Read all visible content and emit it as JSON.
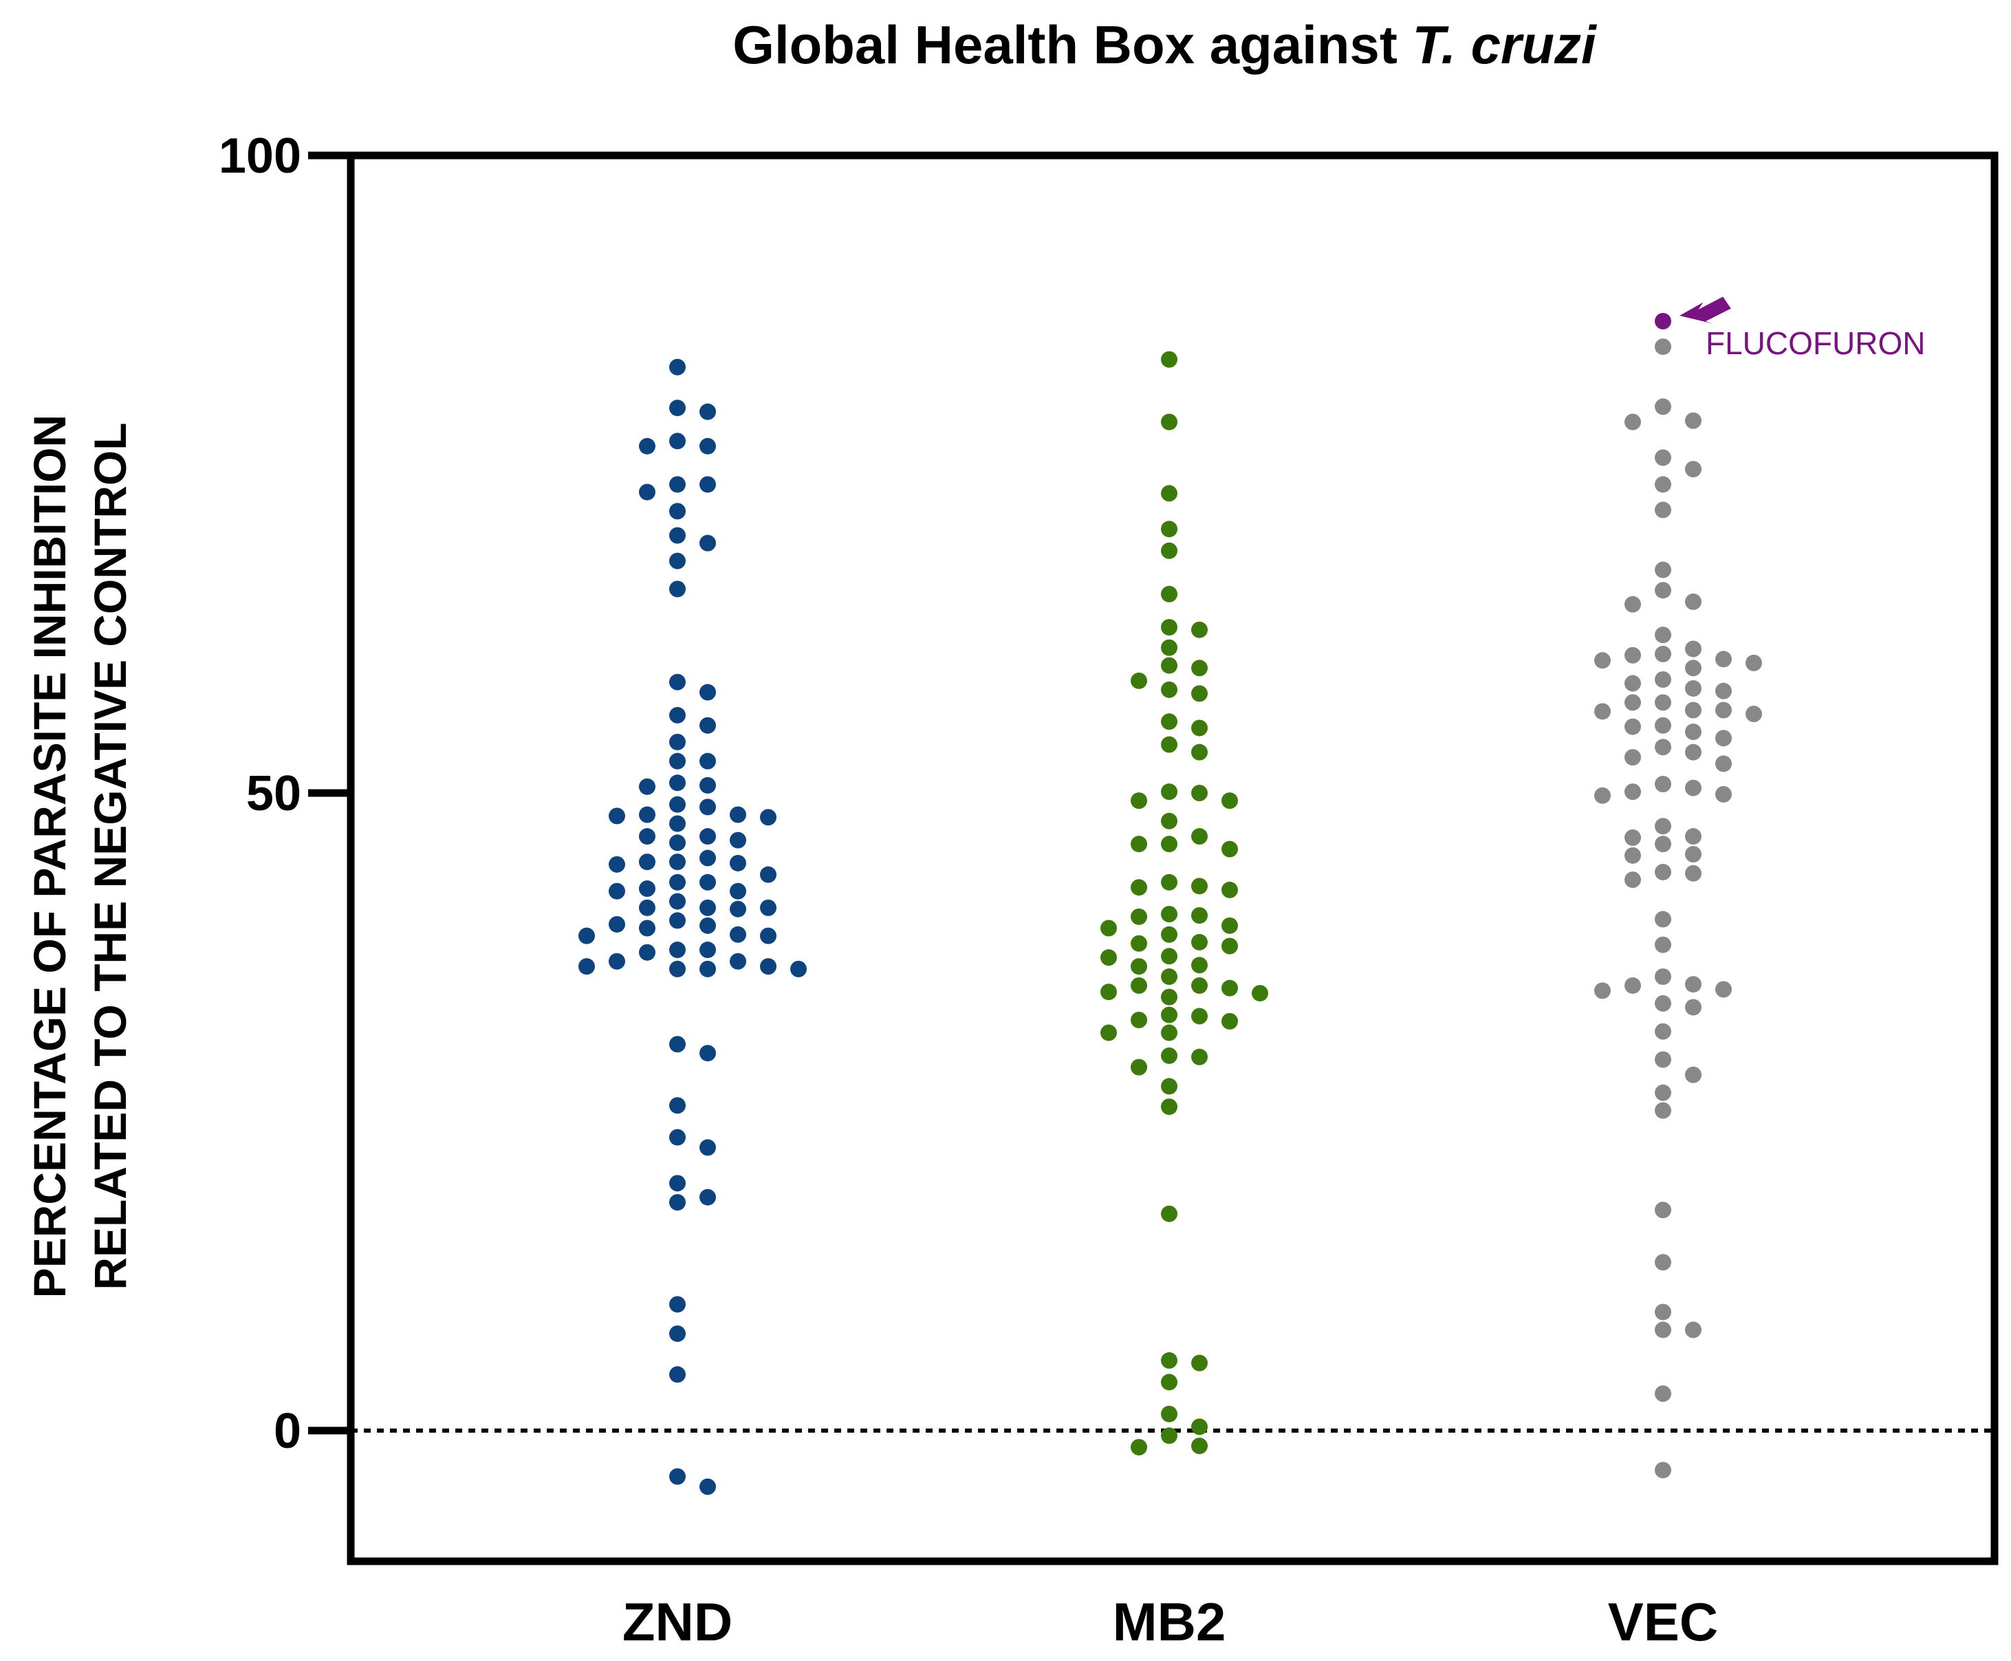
{
  "title": {
    "main": "Global Health Box against ",
    "italic": "T. cruzi"
  },
  "ylabel_lines": [
    "PERCENTAGE OF PARASITE INHIBITION",
    "RELATED TO THE NEGATIVE CONTROL"
  ],
  "colors": {
    "ZND": "#0d4480",
    "MB2": "#3d7a0c",
    "VEC": "#888888",
    "highlight": "#7a1382",
    "axis": "#000000"
  },
  "annotation": {
    "label": "FLUCOFURON",
    "category": "VEC",
    "value": 87.0,
    "icon": "arrow-icon"
  },
  "chart_data": {
    "type": "scatter",
    "title": "Global Health Box against T. cruzi",
    "xlabel": "",
    "ylabel": "PERCENTAGE OF PARASITE INHIBITION RELATED TO THE NEGATIVE CONTROL",
    "ylim": [
      -10,
      100
    ],
    "yticks": [
      0,
      50,
      100
    ],
    "reference_line": 0,
    "categories": [
      "ZND",
      "MB2",
      "VEC"
    ],
    "series": [
      {
        "name": "ZND",
        "values": [
          83.4,
          80.2,
          79.9,
          77.2,
          77.2,
          77.6,
          74.2,
          74.2,
          73.6,
          72.1,
          70.2,
          69.6,
          68.2,
          66.0,
          58.7,
          57.9,
          55.3,
          56.1,
          54.0,
          52.5,
          52.5,
          50.5,
          50.6,
          50.8,
          49.1,
          48.9,
          48.3,
          48.2,
          48.1,
          48.3,
          47.6,
          46.1,
          46.6,
          46.6,
          46.3,
          44.5,
          44.6,
          44.6,
          44.9,
          44.4,
          43.6,
          43.0,
          43.0,
          42.3,
          42.5,
          42.3,
          41.5,
          41.0,
          40.9,
          41.0,
          41.0,
          40.0,
          39.4,
          39.7,
          39.6,
          38.9,
          38.8,
          38.8,
          37.7,
          37.5,
          37.7,
          36.2,
          36.2,
          36.4,
          36.4,
          36.8,
          36.2,
          36.8,
          30.3,
          29.6,
          25.5,
          23.0,
          22.2,
          19.4,
          18.3,
          17.9,
          9.9,
          7.6,
          4.4,
          -4.4,
          -3.6
        ]
      },
      {
        "name": "MB2",
        "values": [
          84.0,
          79.1,
          73.5,
          70.7,
          69.0,
          65.6,
          63.0,
          62.8,
          61.4,
          60.0,
          59.8,
          58.8,
          58.1,
          57.8,
          55.6,
          55.1,
          53.8,
          53.2,
          50.1,
          50.0,
          49.4,
          49.4,
          47.8,
          46.6,
          46.0,
          46.0,
          45.6,
          43.0,
          42.6,
          42.7,
          42.4,
          40.4,
          40.3,
          40.5,
          39.6,
          39.4,
          38.9,
          38.2,
          38.3,
          38.0,
          37.2,
          37.1,
          36.5,
          36.4,
          35.6,
          34.9,
          34.9,
          34.7,
          34.4,
          34.3,
          34.0,
          32.6,
          32.5,
          32.2,
          32.1,
          31.2,
          31.2,
          29.4,
          29.3,
          28.5,
          27.0,
          25.4,
          17.0,
          5.5,
          5.3,
          3.8,
          1.3,
          0.3,
          -0.4,
          -1.3,
          -1.2
        ]
      },
      {
        "name": "VEC",
        "values": [
          85.0,
          80.3,
          79.2,
          79.1,
          76.3,
          75.4,
          74.2,
          72.2,
          67.5,
          65.9,
          65.0,
          64.8,
          62.4,
          61.3,
          60.9,
          60.8,
          60.5,
          60.4,
          60.2,
          59.8,
          58.9,
          58.6,
          58.2,
          58.0,
          57.1,
          57.1,
          56.5,
          56.4,
          56.5,
          56.2,
          55.2,
          55.3,
          54.8,
          54.3,
          53.6,
          53.2,
          52.8,
          52.3,
          50.7,
          50.4,
          50.1,
          49.8,
          49.9,
          47.4,
          46.6,
          46.5,
          46.0,
          45.2,
          45.1,
          43.8,
          43.7,
          43.2,
          40.1,
          38.1,
          35.6,
          35.0,
          34.9,
          34.6,
          34.5,
          33.5,
          33.2,
          31.3,
          29.1,
          27.9,
          26.5,
          25.1,
          17.3,
          13.2,
          9.3,
          7.9,
          7.9,
          2.9,
          -3.1
        ]
      }
    ],
    "highlight_point": {
      "category": "VEC",
      "value": 87.0,
      "label": "FLUCOFURON"
    }
  }
}
